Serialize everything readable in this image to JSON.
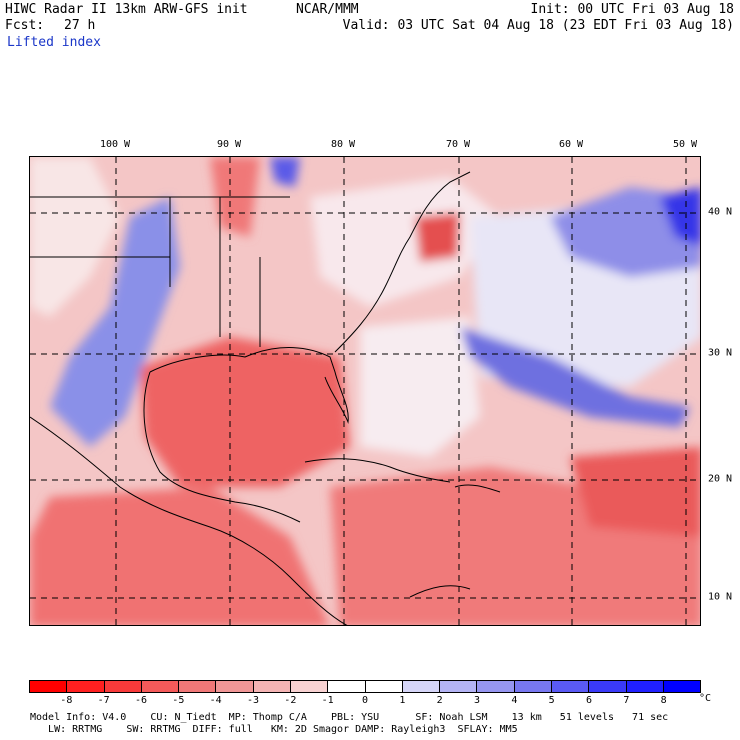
{
  "header": {
    "title_left": "HIWC Radar II 13km ARW-GFS init",
    "org": "NCAR/MMM",
    "init": "Init: 00 UTC Fri 03 Aug 18",
    "fcst_label": "Fcst:",
    "fcst_value": "27 h",
    "valid": "Valid: 03 UTC Sat 04 Aug 18 (23 EDT Fri 03 Aug 18)",
    "field": "Lifted index"
  },
  "map": {
    "lon_labels": [
      "100 W",
      "90 W",
      "80 W",
      "70 W",
      "60 W",
      "50 W"
    ],
    "lat_labels": [
      "40 N",
      "30 N",
      "20 N",
      "10 N"
    ]
  },
  "colorbar": {
    "ticks": [
      "-8",
      "-7",
      "-6",
      "-5",
      "-4",
      "-3",
      "-2",
      "-1",
      "0",
      "1",
      "2",
      "3",
      "4",
      "5",
      "6",
      "7",
      "8"
    ],
    "unit": "°C",
    "colors": [
      "#ff0000",
      "#ff2020",
      "#f83a3a",
      "#f45a5a",
      "#f07878",
      "#f09696",
      "#f4b4b4",
      "#f8d2d2",
      "#ffffff",
      "#ffffff",
      "#d6d6f8",
      "#b4b4f4",
      "#9696f0",
      "#7878f0",
      "#5a5af4",
      "#3a3af8",
      "#2020ff",
      "#0000ff"
    ]
  },
  "footer": {
    "line1": "Model Info: V4.0    CU: N_Tiedt  MP: Thomp C/A    PBL: YSU      SF: Noah LSM    13 km   51 levels   71 sec",
    "line2": "   LW: RRTMG    SW: RRTMG  DIFF: full   KM: 2D Smagor DAMP: Rayleigh3  SFLAY: MM5"
  }
}
